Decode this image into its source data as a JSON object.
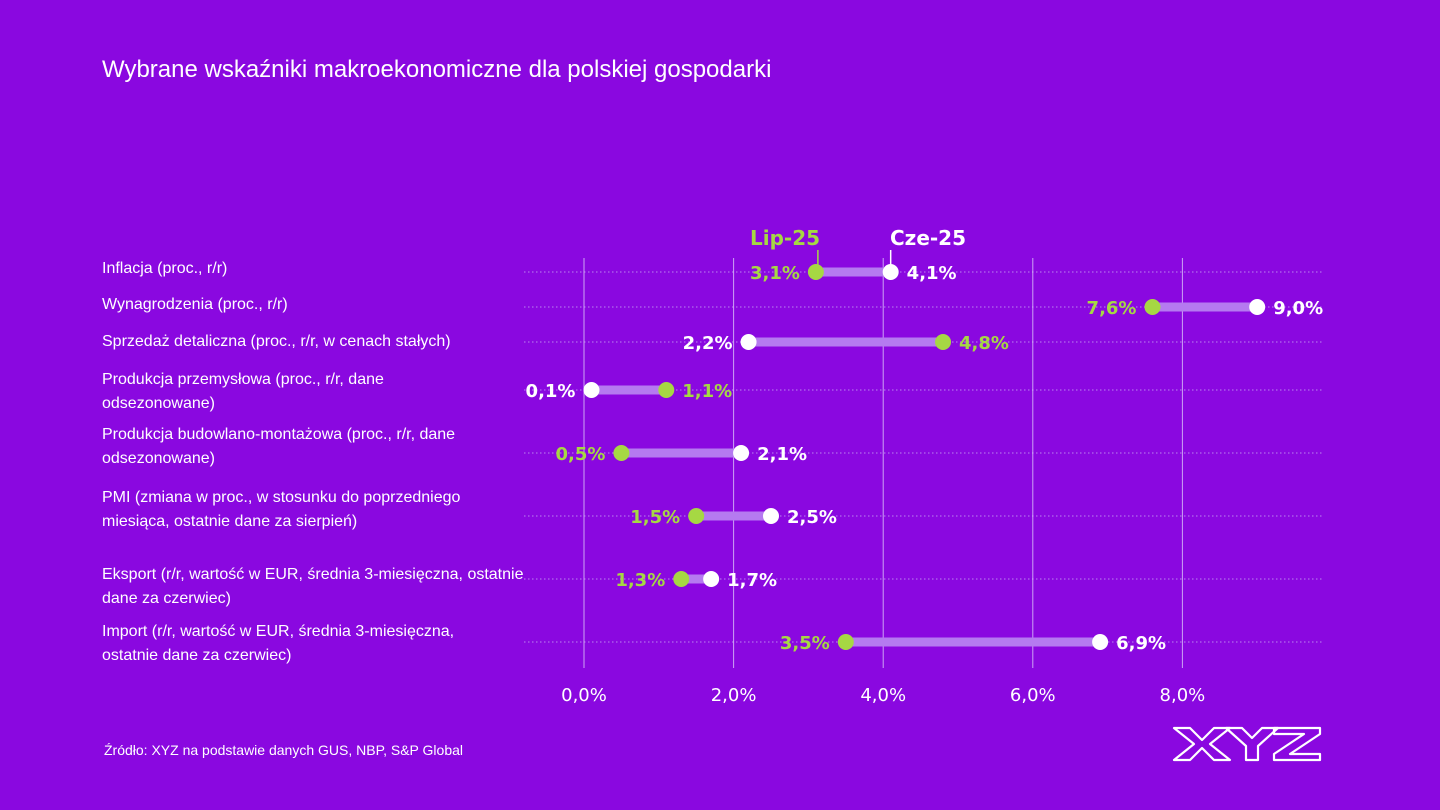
{
  "title": "Wybrane wskaźniki makroekonomiczne dla polskiej gospodarki",
  "source": "Źródło: XYZ na podstawie danych GUS, NBP, S&P Global",
  "logo_text": "XYZ",
  "colors": {
    "background": "#8a08e0",
    "lip": "#a6d843",
    "cze": "#ffffff",
    "bar": "#b57af0"
  },
  "chart_data": {
    "type": "dumbbell",
    "series": [
      {
        "name": "Lip-25",
        "values": [
          3.1,
          7.6,
          4.8,
          1.1,
          0.5,
          1.5,
          1.3,
          3.5
        ]
      },
      {
        "name": "Cze-25",
        "values": [
          4.1,
          9.0,
          2.2,
          0.1,
          2.1,
          2.5,
          1.7,
          6.9
        ]
      }
    ],
    "categories": [
      "Inflacja (proc., r/r)",
      "Wynagrodzenia (proc., r/r)",
      "Sprzedaż detaliczna (proc., r/r, w cenach stałych)",
      "Produkcja przemysłowa (proc., r/r, dane odsezonowane)",
      "Produkcja budowlano-montażowa (proc., r/r, dane odsezonowane)",
      "PMI (zmiana w proc., w stosunku do poprzedniego miesiąca, ostatnie dane za sierpień)",
      "Eksport (r/r, wartość w EUR, średnia 3-miesięczna, ostatnie dane za czerwiec)",
      "Import (r/r, wartość w EUR, średnia 3-miesięczna, ostatnie dane za czerwiec)"
    ],
    "value_labels": {
      "lip": [
        "3,1%",
        "7,6%",
        "4,8%",
        "1,1%",
        "0,5%",
        "1,5%",
        "1,3%",
        "3,5%"
      ],
      "cze": [
        "4,1%",
        "9,0%",
        "2,2%",
        "0,1%",
        "2,1%",
        "2,5%",
        "1,7%",
        "6,9%"
      ]
    },
    "x_ticks": [
      0,
      2,
      4,
      6,
      8
    ],
    "x_tick_labels": [
      "0,0%",
      "2,0%",
      "4,0%",
      "6,0%",
      "8,0%"
    ],
    "xlim": [
      -0.8,
      10
    ],
    "legend_placement": "top"
  }
}
